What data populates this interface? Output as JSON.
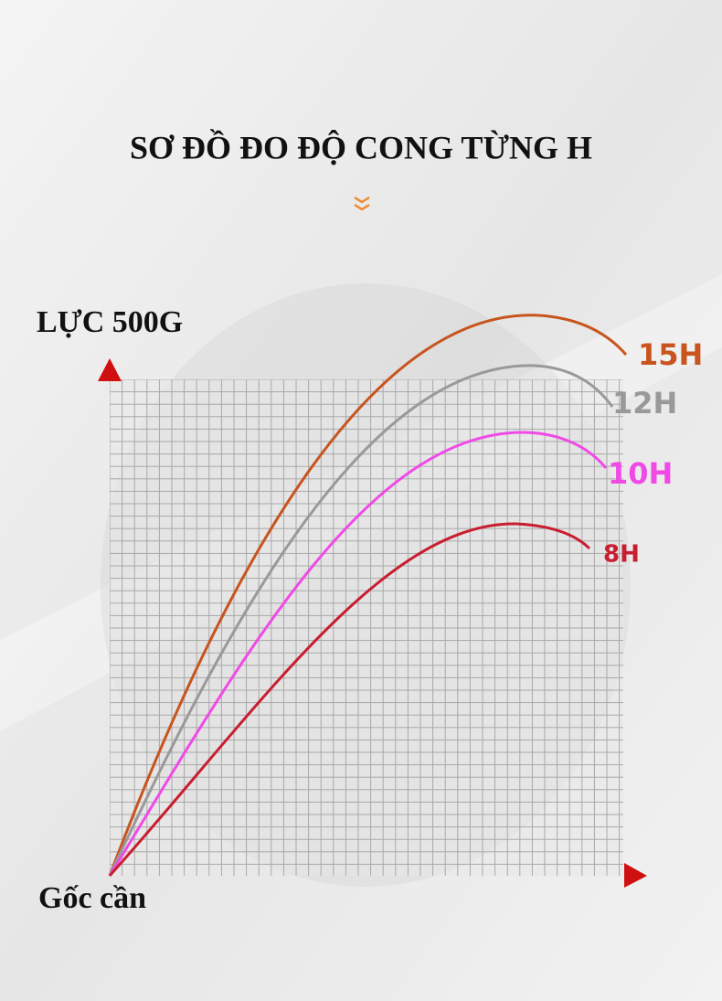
{
  "header": {
    "title": "SƠ ĐỒ ĐO ĐỘ CONG TỪNG H"
  },
  "diagram": {
    "y_label": "LỰC 500G",
    "origin_label": "Gốc cần",
    "curves": [
      {
        "label": "15H"
      },
      {
        "label": "12H"
      },
      {
        "label": "10H"
      },
      {
        "label": "8H"
      }
    ]
  }
}
